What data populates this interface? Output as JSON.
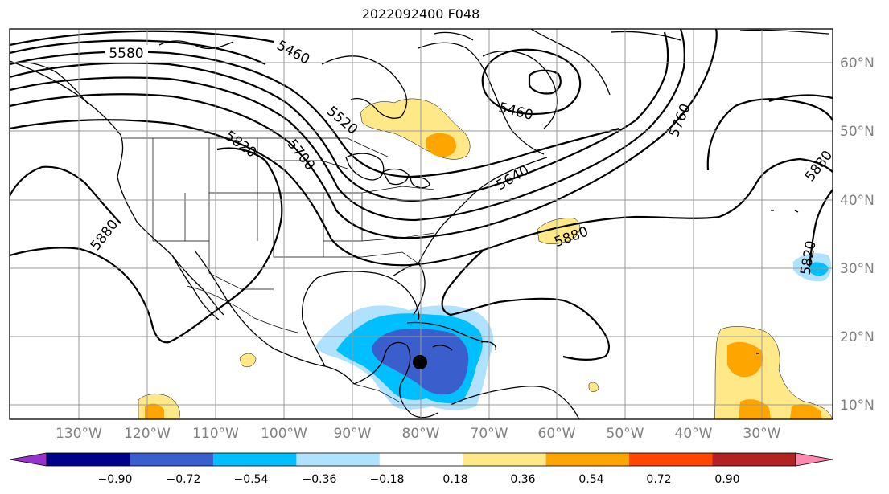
{
  "title": "2022092400 F048",
  "latitude_labels": [
    "60°N",
    "50°N",
    "40°N",
    "30°N",
    "20°N",
    "10°N"
  ],
  "longitude_labels": [
    "130°W",
    "120°W",
    "110°W",
    "100°W",
    "90°W",
    "80°W",
    "70°W",
    "60°W",
    "50°W",
    "40°W",
    "30°W"
  ],
  "contour_labels": [
    "5580",
    "5460",
    "5520",
    "5820",
    "5700",
    "5460",
    "5640",
    "5760",
    "5880",
    "5880",
    "5880",
    "5820"
  ],
  "colorbar": {
    "tick_labels": [
      "−0.90",
      "−0.72",
      "−0.54",
      "−0.36",
      "−0.18",
      "0.18",
      "0.36",
      "0.54",
      "0.72",
      "0.90"
    ],
    "colors": [
      "#9932CC",
      "#00008B",
      "#3A5FCD",
      "#00BFFF",
      "#B0E2FF",
      "#FFFFFF",
      "#FFE888",
      "#FFA500",
      "#FF4500",
      "#B22222",
      "#FF88B0"
    ]
  },
  "storm_marker": {
    "lon": -81,
    "lat": 16.5
  }
}
